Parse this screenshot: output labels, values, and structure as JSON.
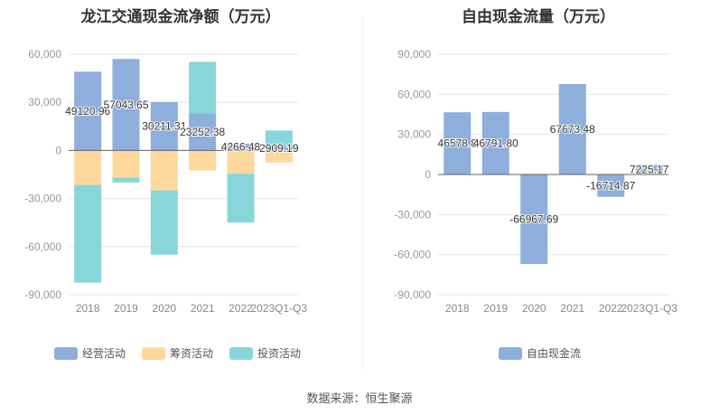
{
  "chart_data": [
    {
      "type": "bar",
      "stacked": true,
      "title": "龙江交通现金流净额（万元）",
      "categories": [
        "2018",
        "2019",
        "2020",
        "2021",
        "2022",
        "2023Q1-Q3"
      ],
      "ylim": [
        -90000,
        60000
      ],
      "yticks": [
        "60,000",
        "30,000",
        "0",
        "-30,000",
        "-60,000",
        "-90,000"
      ],
      "series": [
        {
          "name": "经营活动",
          "color": "#8eaedb",
          "values": [
            49120.96,
            57043.65,
            30211.31,
            23252.38,
            4266.48,
            2909.19
          ],
          "labels": [
            "49120.96",
            "57043.65",
            "30211.31",
            "23252.38",
            "4266.48",
            "2909.19"
          ]
        },
        {
          "name": "筹资活动",
          "color": "#fdd89c",
          "values": [
            -21500,
            -17000,
            -25000,
            -12500,
            -14500,
            -7500
          ]
        },
        {
          "name": "投资活动",
          "color": "#88d6d9",
          "values": [
            -61000,
            -3000,
            -40000,
            32000,
            -30500,
            9500
          ]
        }
      ],
      "legend": "bottom"
    },
    {
      "type": "bar",
      "title": "自由现金流量（万元）",
      "categories": [
        "2018",
        "2019",
        "2020",
        "2021",
        "2022",
        "2023Q1-Q3"
      ],
      "ylim": [
        -90000,
        90000
      ],
      "yticks": [
        "90,000",
        "60,000",
        "30,000",
        "0",
        "-30,000",
        "-60,000",
        "-90,000"
      ],
      "series": [
        {
          "name": "自由现金流",
          "color": "#8eaedb",
          "values": [
            46578.8,
            46791.8,
            -66967.69,
            67673.48,
            -16714.87,
            7225.17
          ],
          "labels": [
            "46578.8",
            "46791.80",
            "-66967.69",
            "67673.48",
            "-16714.87",
            "7225.17"
          ]
        }
      ],
      "legend": "bottom"
    }
  ],
  "footer": "数据来源：恒生聚源"
}
